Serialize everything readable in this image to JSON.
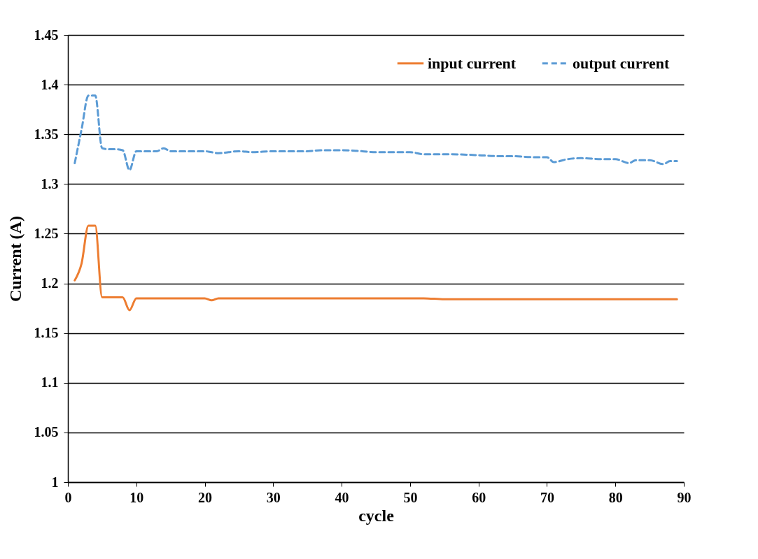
{
  "chart_data": {
    "type": "line",
    "xlabel": "cycle",
    "ylabel": "Current (A)",
    "x": [
      1,
      2,
      3,
      4,
      5,
      6,
      7,
      8,
      9,
      10,
      11,
      12,
      13,
      14,
      15,
      17,
      20,
      21,
      22,
      25,
      27,
      30,
      35,
      37,
      40,
      43,
      45,
      50,
      52,
      55,
      60,
      63,
      65,
      68,
      70,
      71,
      73,
      75,
      78,
      80,
      82,
      83,
      85,
      87,
      88,
      89
    ],
    "series": [
      {
        "name": "input current",
        "color": "#ed7d31",
        "line_style": "solid",
        "values": [
          1.203,
          1.22,
          1.258,
          1.258,
          1.186,
          1.186,
          1.186,
          1.186,
          1.173,
          1.185,
          1.185,
          1.185,
          1.185,
          1.185,
          1.185,
          1.185,
          1.185,
          1.183,
          1.185,
          1.185,
          1.185,
          1.185,
          1.185,
          1.185,
          1.185,
          1.185,
          1.185,
          1.185,
          1.185,
          1.184,
          1.184,
          1.184,
          1.184,
          1.184,
          1.184,
          1.184,
          1.184,
          1.184,
          1.184,
          1.184,
          1.184,
          1.184,
          1.184,
          1.184,
          1.184,
          1.184
        ]
      },
      {
        "name": "output current",
        "color": "#5b9bd5",
        "line_style": "dashed",
        "values": [
          1.321,
          1.355,
          1.389,
          1.389,
          1.336,
          1.335,
          1.335,
          1.334,
          1.314,
          1.333,
          1.333,
          1.333,
          1.333,
          1.336,
          1.333,
          1.333,
          1.333,
          1.332,
          1.331,
          1.333,
          1.332,
          1.333,
          1.333,
          1.334,
          1.334,
          1.333,
          1.332,
          1.332,
          1.33,
          1.33,
          1.329,
          1.328,
          1.328,
          1.327,
          1.327,
          1.322,
          1.325,
          1.326,
          1.325,
          1.325,
          1.321,
          1.324,
          1.324,
          1.32,
          1.323,
          1.323
        ]
      }
    ],
    "xlim": [
      0,
      90
    ],
    "xticks": [
      0,
      10,
      20,
      30,
      40,
      50,
      60,
      70,
      80,
      90
    ],
    "ylim": [
      1,
      1.45
    ],
    "yticks": [
      1,
      {
        "value": 1.05,
        "label": "1.05"
      },
      {
        "value": 1.1,
        "label": "1.1"
      },
      {
        "value": 1.15,
        "label": "1.15"
      },
      {
        "value": 1.2,
        "label": "1.2"
      },
      {
        "value": 1.25,
        "label": "1.25"
      },
      {
        "value": 1.3,
        "label": "1.3"
      },
      {
        "value": 1.35,
        "label": "1.35"
      },
      {
        "value": 1.4,
        "label": "1.4"
      },
      {
        "value": 1.45,
        "label": "1.45"
      }
    ],
    "grid": "y",
    "legend": "top right"
  }
}
